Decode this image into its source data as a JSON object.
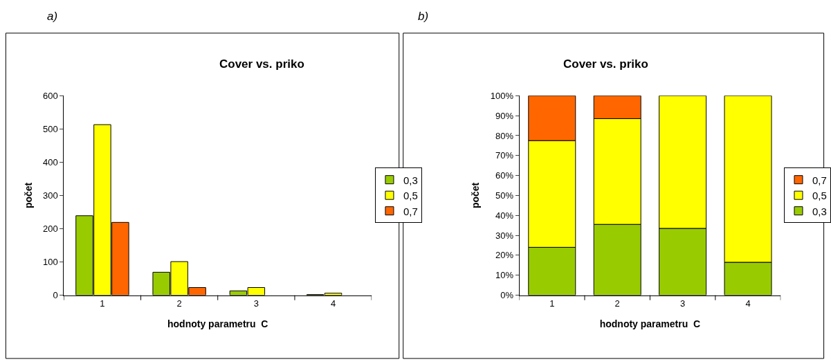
{
  "chart_data": [
    {
      "type": "bar",
      "title": "Cover vs. priko",
      "xlabel": "hodnoty parametru  C",
      "ylabel": "počet",
      "annotations": [
        "a)"
      ],
      "categories": [
        "1",
        "2",
        "3",
        "4"
      ],
      "series": [
        {
          "name": "0,3",
          "color": "#99cc00",
          "values": [
            239,
            69,
            13,
            2
          ]
        },
        {
          "name": "0,5",
          "color": "#ffff00",
          "values": [
            513,
            101,
            23,
            6
          ]
        },
        {
          "name": "0,7",
          "color": "#ff6600",
          "values": [
            219,
            23,
            0,
            0
          ]
        }
      ],
      "ylim": [
        0,
        600
      ],
      "yticks": [
        0,
        100,
        200,
        300,
        400,
        500,
        600
      ],
      "legend": "right"
    },
    {
      "type": "bar",
      "stacked": true,
      "title": "Cover vs. priko",
      "xlabel": "hodnoty parametru  C",
      "ylabel": "počet",
      "annotations": [
        "b)"
      ],
      "categories": [
        "1",
        "2",
        "3",
        "4"
      ],
      "series": [
        {
          "name": "0,3",
          "color": "#99cc00",
          "values": [
            24,
            35.5,
            33.5,
            16.5
          ]
        },
        {
          "name": "0,5",
          "color": "#ffff00",
          "values": [
            53.5,
            53,
            66.5,
            83.5
          ]
        },
        {
          "name": "0,7",
          "color": "#ff6600",
          "values": [
            22.5,
            11.5,
            0,
            0
          ]
        }
      ],
      "ylim": [
        0,
        100
      ],
      "yticks": [
        {
          "value": 0,
          "label": "0%"
        },
        {
          "value": 10,
          "label": "10%"
        },
        {
          "value": 20,
          "label": "20%"
        },
        {
          "value": 30,
          "label": "30%"
        },
        {
          "value": 40,
          "label": "40%"
        },
        {
          "value": 50,
          "label": "50%"
        },
        {
          "value": 60,
          "label": "60%"
        },
        {
          "value": 70,
          "label": "70%"
        },
        {
          "value": 80,
          "label": "80%"
        },
        {
          "value": 90,
          "label": "90%"
        },
        {
          "value": 100,
          "label": "100%"
        }
      ],
      "legend": "right"
    }
  ]
}
